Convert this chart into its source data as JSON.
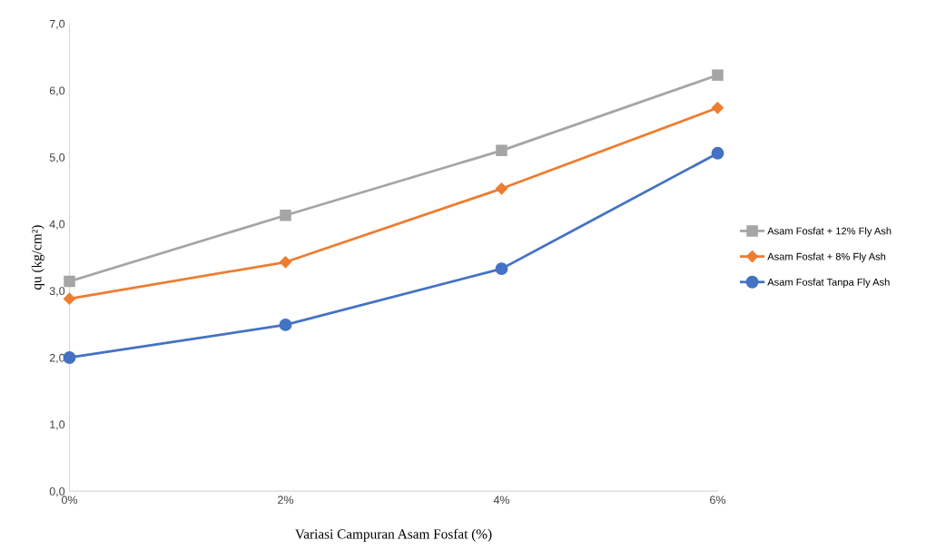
{
  "chart_data": {
    "type": "line",
    "xlabel": "Variasi Campuran Asam Fosfat (%)",
    "ylabel": "qu (kg/cm²)",
    "categories": [
      "0%",
      "2%",
      "4%",
      "6%"
    ],
    "series": [
      {
        "name": "Asam Fosfat + 12% Fly Ash",
        "color": "#a5a5a5",
        "marker": "square",
        "values": [
          3.14,
          4.13,
          5.1,
          6.23
        ]
      },
      {
        "name": "Asam Fosfat + 8% Fly Ash",
        "color": "#ed7d31",
        "marker": "diamond",
        "values": [
          2.88,
          3.43,
          4.53,
          5.74
        ]
      },
      {
        "name": "Asam Fosfat Tanpa Fly Ash",
        "color": "#4472c4",
        "marker": "circle",
        "values": [
          2.0,
          2.49,
          3.33,
          5.06
        ]
      }
    ],
    "ylim": [
      0,
      7
    ],
    "yticks": [
      {
        "value": 0,
        "label": "0,0"
      },
      {
        "value": 1,
        "label": "1,0"
      },
      {
        "value": 2,
        "label": "2,0"
      },
      {
        "value": 3,
        "label": "3,0"
      },
      {
        "value": 4,
        "label": "4,0"
      },
      {
        "value": 5,
        "label": "5,0"
      },
      {
        "value": 6,
        "label": "6,0"
      },
      {
        "value": 7,
        "label": "7,0"
      }
    ],
    "grid": false,
    "legend": "right",
    "line_style": "solid"
  }
}
